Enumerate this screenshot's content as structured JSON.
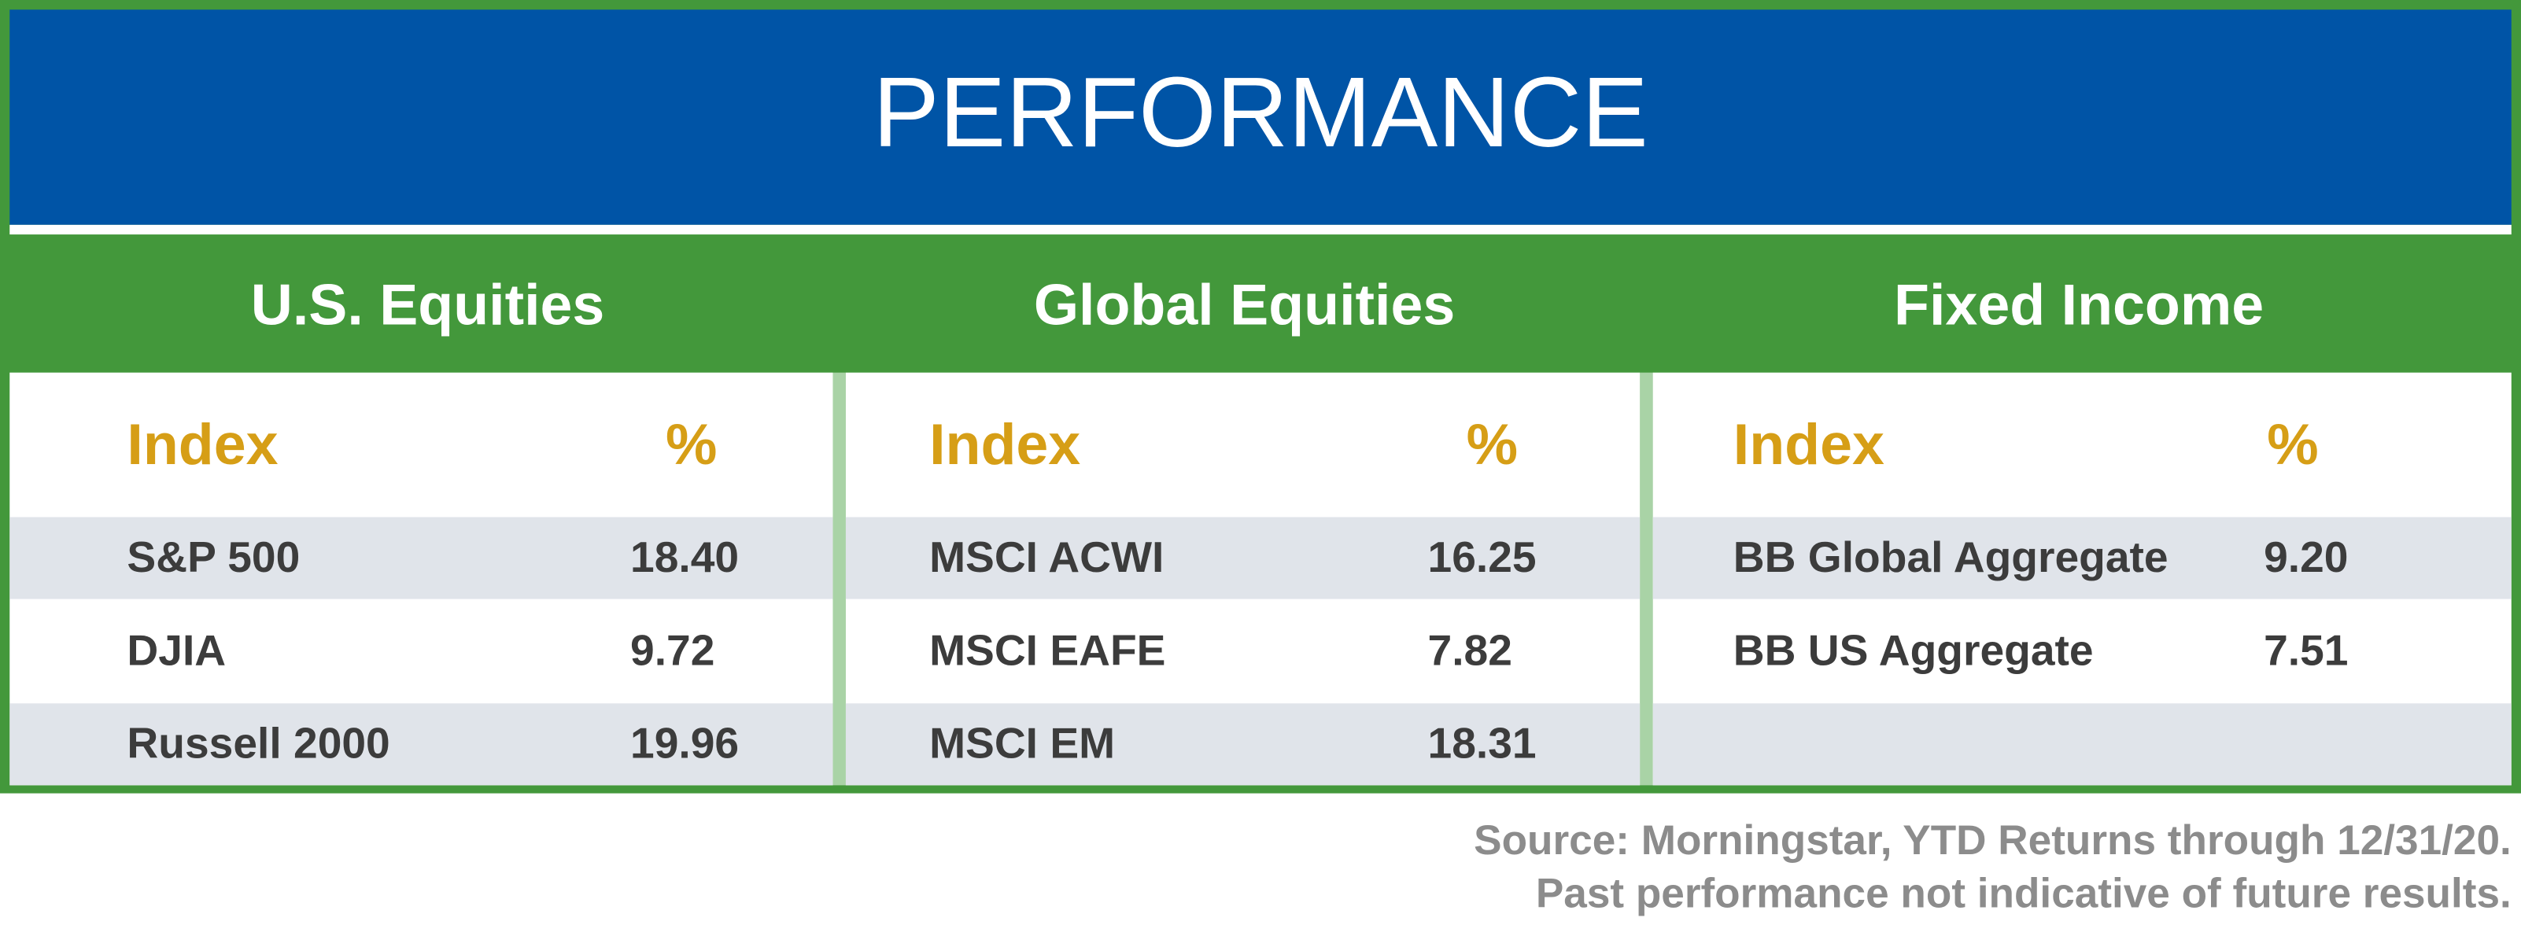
{
  "header": {
    "title": "PERFORMANCE"
  },
  "sections": [
    {
      "title": "U.S. Equities",
      "headers": [
        "Index",
        "%"
      ],
      "rows": [
        [
          "S&P 500",
          "18.40"
        ],
        [
          "DJIA",
          "9.72"
        ],
        [
          "Russell 2000",
          "19.96"
        ]
      ]
    },
    {
      "title": "Global Equities",
      "headers": [
        "Index",
        "%"
      ],
      "rows": [
        [
          "MSCI ACWI",
          "16.25"
        ],
        [
          "MSCI EAFE",
          "7.82"
        ],
        [
          "MSCI EM",
          "18.31"
        ]
      ]
    },
    {
      "title": "Fixed Income",
      "headers": [
        "Index",
        "%"
      ],
      "rows": [
        [
          "BB Global Aggregate",
          "9.20"
        ],
        [
          "BB US Aggregate",
          "7.51"
        ]
      ]
    }
  ],
  "footer": {
    "lines": [
      "Source: Morningstar, YTD Returns through 12/31/20.",
      "Past performance not indicative of future results."
    ]
  }
}
